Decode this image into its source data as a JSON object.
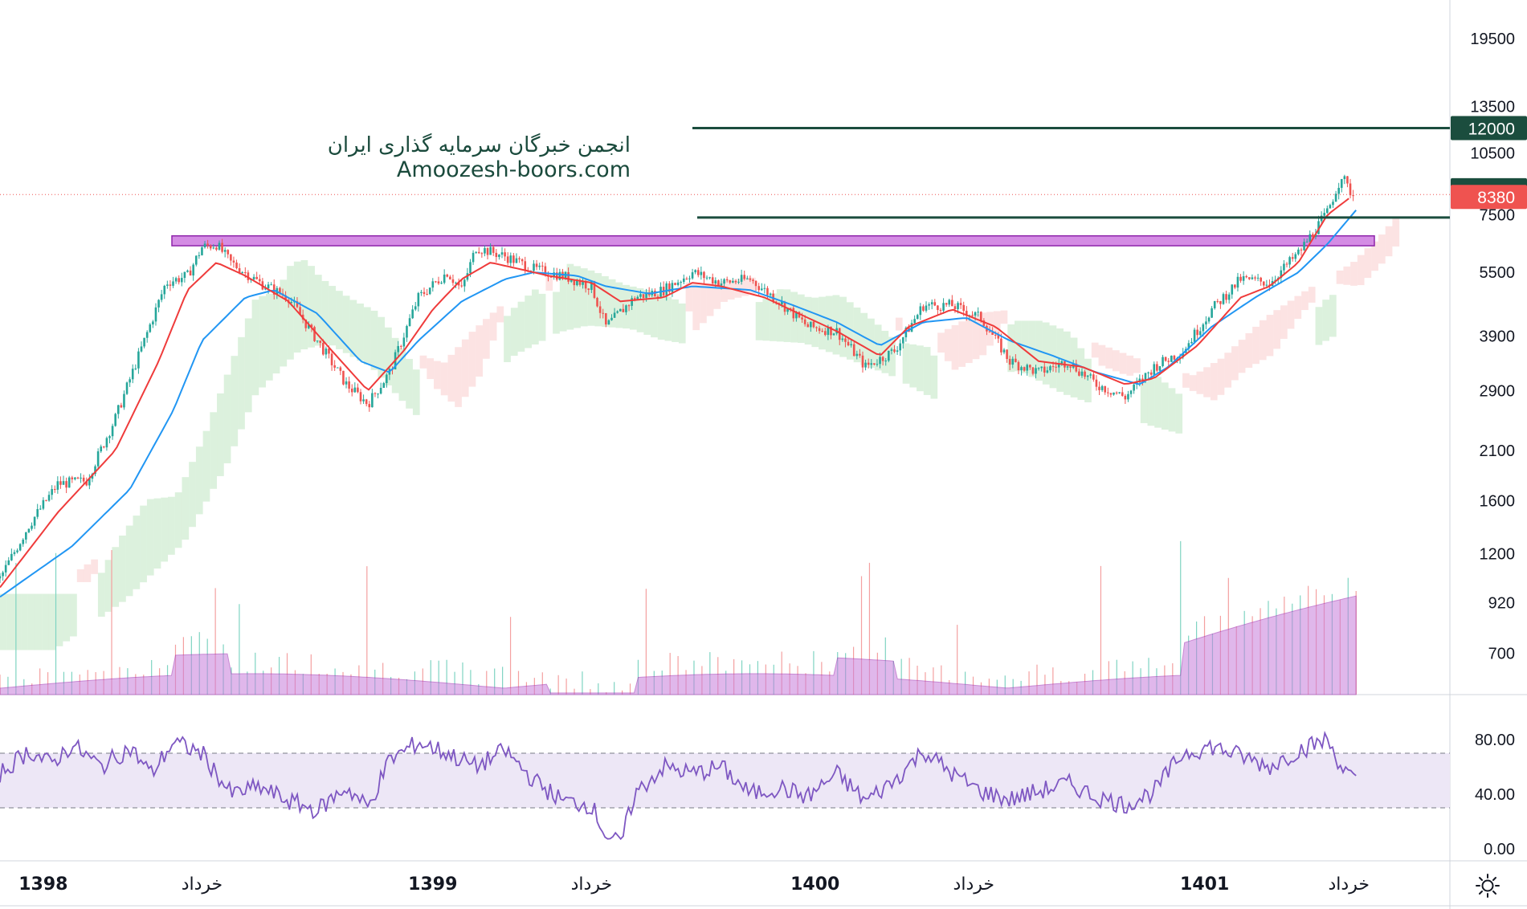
{
  "watermark": {
    "line1": "انجمن خبرگان سرمایه گذاری ایران",
    "line2": "Amoozesh-boors.com"
  },
  "chart_data": [
    {
      "type": "candlestick",
      "panel": "price",
      "yscale": "log",
      "ylim": [
        560,
        24000
      ],
      "y_ticks": [
        700,
        920,
        1200,
        1600,
        2100,
        2900,
        3900,
        5500,
        7500,
        10500,
        13500,
        19500
      ],
      "x_labels": [
        {
          "text": "1398",
          "bold": true,
          "pos": 0.03
        },
        {
          "text": "خرداد",
          "bold": false,
          "pos": 0.14
        },
        {
          "text": "1399",
          "bold": true,
          "pos": 0.3
        },
        {
          "text": "خرداد",
          "bold": false,
          "pos": 0.41
        },
        {
          "text": "1400",
          "bold": true,
          "pos": 0.565
        },
        {
          "text": "خرداد",
          "bold": false,
          "pos": 0.675
        },
        {
          "text": "1401",
          "bold": true,
          "pos": 0.835
        },
        {
          "text": "خرداد",
          "bold": false,
          "pos": 0.935
        }
      ],
      "price_path": [
        [
          0,
          1050
        ],
        [
          0.02,
          1400
        ],
        [
          0.04,
          1750
        ],
        [
          0.06,
          1780
        ],
        [
          0.08,
          2500
        ],
        [
          0.1,
          3800
        ],
        [
          0.115,
          5200
        ],
        [
          0.13,
          5400
        ],
        [
          0.14,
          6300
        ],
        [
          0.15,
          6400
        ],
        [
          0.16,
          5800
        ],
        [
          0.18,
          5200
        ],
        [
          0.2,
          4800
        ],
        [
          0.22,
          3800
        ],
        [
          0.24,
          3000
        ],
        [
          0.255,
          2700
        ],
        [
          0.27,
          3200
        ],
        [
          0.29,
          4800
        ],
        [
          0.31,
          5500
        ],
        [
          0.32,
          5000
        ],
        [
          0.33,
          6300
        ],
        [
          0.35,
          6000
        ],
        [
          0.37,
          5600
        ],
        [
          0.39,
          5400
        ],
        [
          0.41,
          5100
        ],
        [
          0.42,
          4100
        ],
        [
          0.44,
          4800
        ],
        [
          0.46,
          5000
        ],
        [
          0.48,
          5500
        ],
        [
          0.5,
          5200
        ],
        [
          0.52,
          5300
        ],
        [
          0.54,
          4700
        ],
        [
          0.56,
          4100
        ],
        [
          0.58,
          4000
        ],
        [
          0.6,
          3300
        ],
        [
          0.62,
          3600
        ],
        [
          0.64,
          4600
        ],
        [
          0.66,
          4600
        ],
        [
          0.68,
          4300
        ],
        [
          0.7,
          3400
        ],
        [
          0.72,
          3200
        ],
        [
          0.74,
          3400
        ],
        [
          0.76,
          3000
        ],
        [
          0.78,
          2800
        ],
        [
          0.8,
          3300
        ],
        [
          0.82,
          3600
        ],
        [
          0.84,
          4500
        ],
        [
          0.86,
          5300
        ],
        [
          0.88,
          5200
        ],
        [
          0.9,
          6100
        ],
        [
          0.92,
          7600
        ],
        [
          0.93,
          9300
        ],
        [
          0.935,
          8600
        ],
        [
          0.94,
          8200
        ]
      ],
      "ema_red_path": [
        [
          0,
          1000
        ],
        [
          0.04,
          1500
        ],
        [
          0.08,
          2100
        ],
        [
          0.11,
          3400
        ],
        [
          0.13,
          5000
        ],
        [
          0.15,
          5800
        ],
        [
          0.17,
          5400
        ],
        [
          0.2,
          4700
        ],
        [
          0.23,
          3600
        ],
        [
          0.255,
          2900
        ],
        [
          0.28,
          3600
        ],
        [
          0.3,
          4500
        ],
        [
          0.32,
          5300
        ],
        [
          0.34,
          5800
        ],
        [
          0.36,
          5600
        ],
        [
          0.38,
          5400
        ],
        [
          0.41,
          5200
        ],
        [
          0.43,
          4700
        ],
        [
          0.46,
          4800
        ],
        [
          0.48,
          5200
        ],
        [
          0.5,
          5100
        ],
        [
          0.53,
          4800
        ],
        [
          0.56,
          4300
        ],
        [
          0.58,
          4000
        ],
        [
          0.61,
          3500
        ],
        [
          0.63,
          4100
        ],
        [
          0.66,
          4500
        ],
        [
          0.69,
          4100
        ],
        [
          0.72,
          3400
        ],
        [
          0.75,
          3300
        ],
        [
          0.78,
          3000
        ],
        [
          0.8,
          3100
        ],
        [
          0.83,
          3700
        ],
        [
          0.86,
          4800
        ],
        [
          0.88,
          5100
        ],
        [
          0.9,
          5800
        ],
        [
          0.92,
          7500
        ],
        [
          0.935,
          8200
        ]
      ],
      "ema_blue_path": [
        [
          0,
          950
        ],
        [
          0.05,
          1250
        ],
        [
          0.09,
          1700
        ],
        [
          0.12,
          2600
        ],
        [
          0.14,
          3800
        ],
        [
          0.17,
          4800
        ],
        [
          0.19,
          5000
        ],
        [
          0.22,
          4400
        ],
        [
          0.25,
          3400
        ],
        [
          0.27,
          3200
        ],
        [
          0.29,
          3800
        ],
        [
          0.32,
          4700
        ],
        [
          0.35,
          5300
        ],
        [
          0.37,
          5500
        ],
        [
          0.4,
          5400
        ],
        [
          0.42,
          5100
        ],
        [
          0.45,
          4900
        ],
        [
          0.48,
          5100
        ],
        [
          0.52,
          5000
        ],
        [
          0.55,
          4600
        ],
        [
          0.58,
          4200
        ],
        [
          0.61,
          3700
        ],
        [
          0.64,
          4200
        ],
        [
          0.67,
          4300
        ],
        [
          0.7,
          3800
        ],
        [
          0.73,
          3500
        ],
        [
          0.76,
          3200
        ],
        [
          0.79,
          3000
        ],
        [
          0.81,
          3300
        ],
        [
          0.84,
          4100
        ],
        [
          0.87,
          4800
        ],
        [
          0.9,
          5500
        ],
        [
          0.92,
          6400
        ],
        [
          0.94,
          7700
        ]
      ],
      "levels": [
        {
          "value": 12000,
          "label": "12000",
          "color": "#1b4d3e"
        },
        {
          "value": 8500,
          "label": "8500",
          "color": "#1b4d3e"
        },
        {
          "value": 8380,
          "label": "8380",
          "color": "#ef5350"
        }
      ],
      "resistance_zone": [
        6350,
        6700
      ],
      "colors": {
        "up": "#26a69a",
        "down": "#ef5350",
        "ema_fast": "#ef3b3b",
        "ema_slow": "#2196f3",
        "zone": "#d48ce4",
        "volume": "#c77ddc",
        "level": "#1b4d3e",
        "last_price": "#ef5350",
        "cloud_bull": "#8bd18f",
        "cloud_bear": "#f4a3a3"
      }
    },
    {
      "type": "line",
      "panel": "rsi",
      "ylim": [
        0,
        100
      ],
      "y_ticks": [
        "80.00",
        "40.00",
        "0.00"
      ],
      "bands": [
        70,
        30
      ],
      "rsi_path": [
        [
          0,
          55
        ],
        [
          0.02,
          72
        ],
        [
          0.035,
          62
        ],
        [
          0.05,
          76
        ],
        [
          0.07,
          60
        ],
        [
          0.09,
          74
        ],
        [
          0.105,
          55
        ],
        [
          0.12,
          78
        ],
        [
          0.14,
          70
        ],
        [
          0.16,
          40
        ],
        [
          0.18,
          45
        ],
        [
          0.2,
          35
        ],
        [
          0.22,
          28
        ],
        [
          0.24,
          45
        ],
        [
          0.255,
          30
        ],
        [
          0.27,
          65
        ],
        [
          0.29,
          78
        ],
        [
          0.31,
          70
        ],
        [
          0.33,
          60
        ],
        [
          0.35,
          72
        ],
        [
          0.37,
          50
        ],
        [
          0.39,
          35
        ],
        [
          0.41,
          32
        ],
        [
          0.42,
          10
        ],
        [
          0.43,
          3
        ],
        [
          0.44,
          40
        ],
        [
          0.46,
          60
        ],
        [
          0.48,
          55
        ],
        [
          0.5,
          60
        ],
        [
          0.52,
          40
        ],
        [
          0.54,
          45
        ],
        [
          0.56,
          38
        ],
        [
          0.58,
          55
        ],
        [
          0.6,
          35
        ],
        [
          0.62,
          50
        ],
        [
          0.64,
          72
        ],
        [
          0.66,
          55
        ],
        [
          0.68,
          42
        ],
        [
          0.7,
          36
        ],
        [
          0.72,
          42
        ],
        [
          0.74,
          48
        ],
        [
          0.76,
          38
        ],
        [
          0.78,
          32
        ],
        [
          0.8,
          42
        ],
        [
          0.82,
          70
        ],
        [
          0.84,
          75
        ],
        [
          0.86,
          68
        ],
        [
          0.88,
          60
        ],
        [
          0.9,
          72
        ],
        [
          0.92,
          80
        ],
        [
          0.93,
          60
        ],
        [
          0.94,
          48
        ]
      ],
      "line_color": "#7e57c2",
      "band_fill": "#ede7f6"
    }
  ]
}
